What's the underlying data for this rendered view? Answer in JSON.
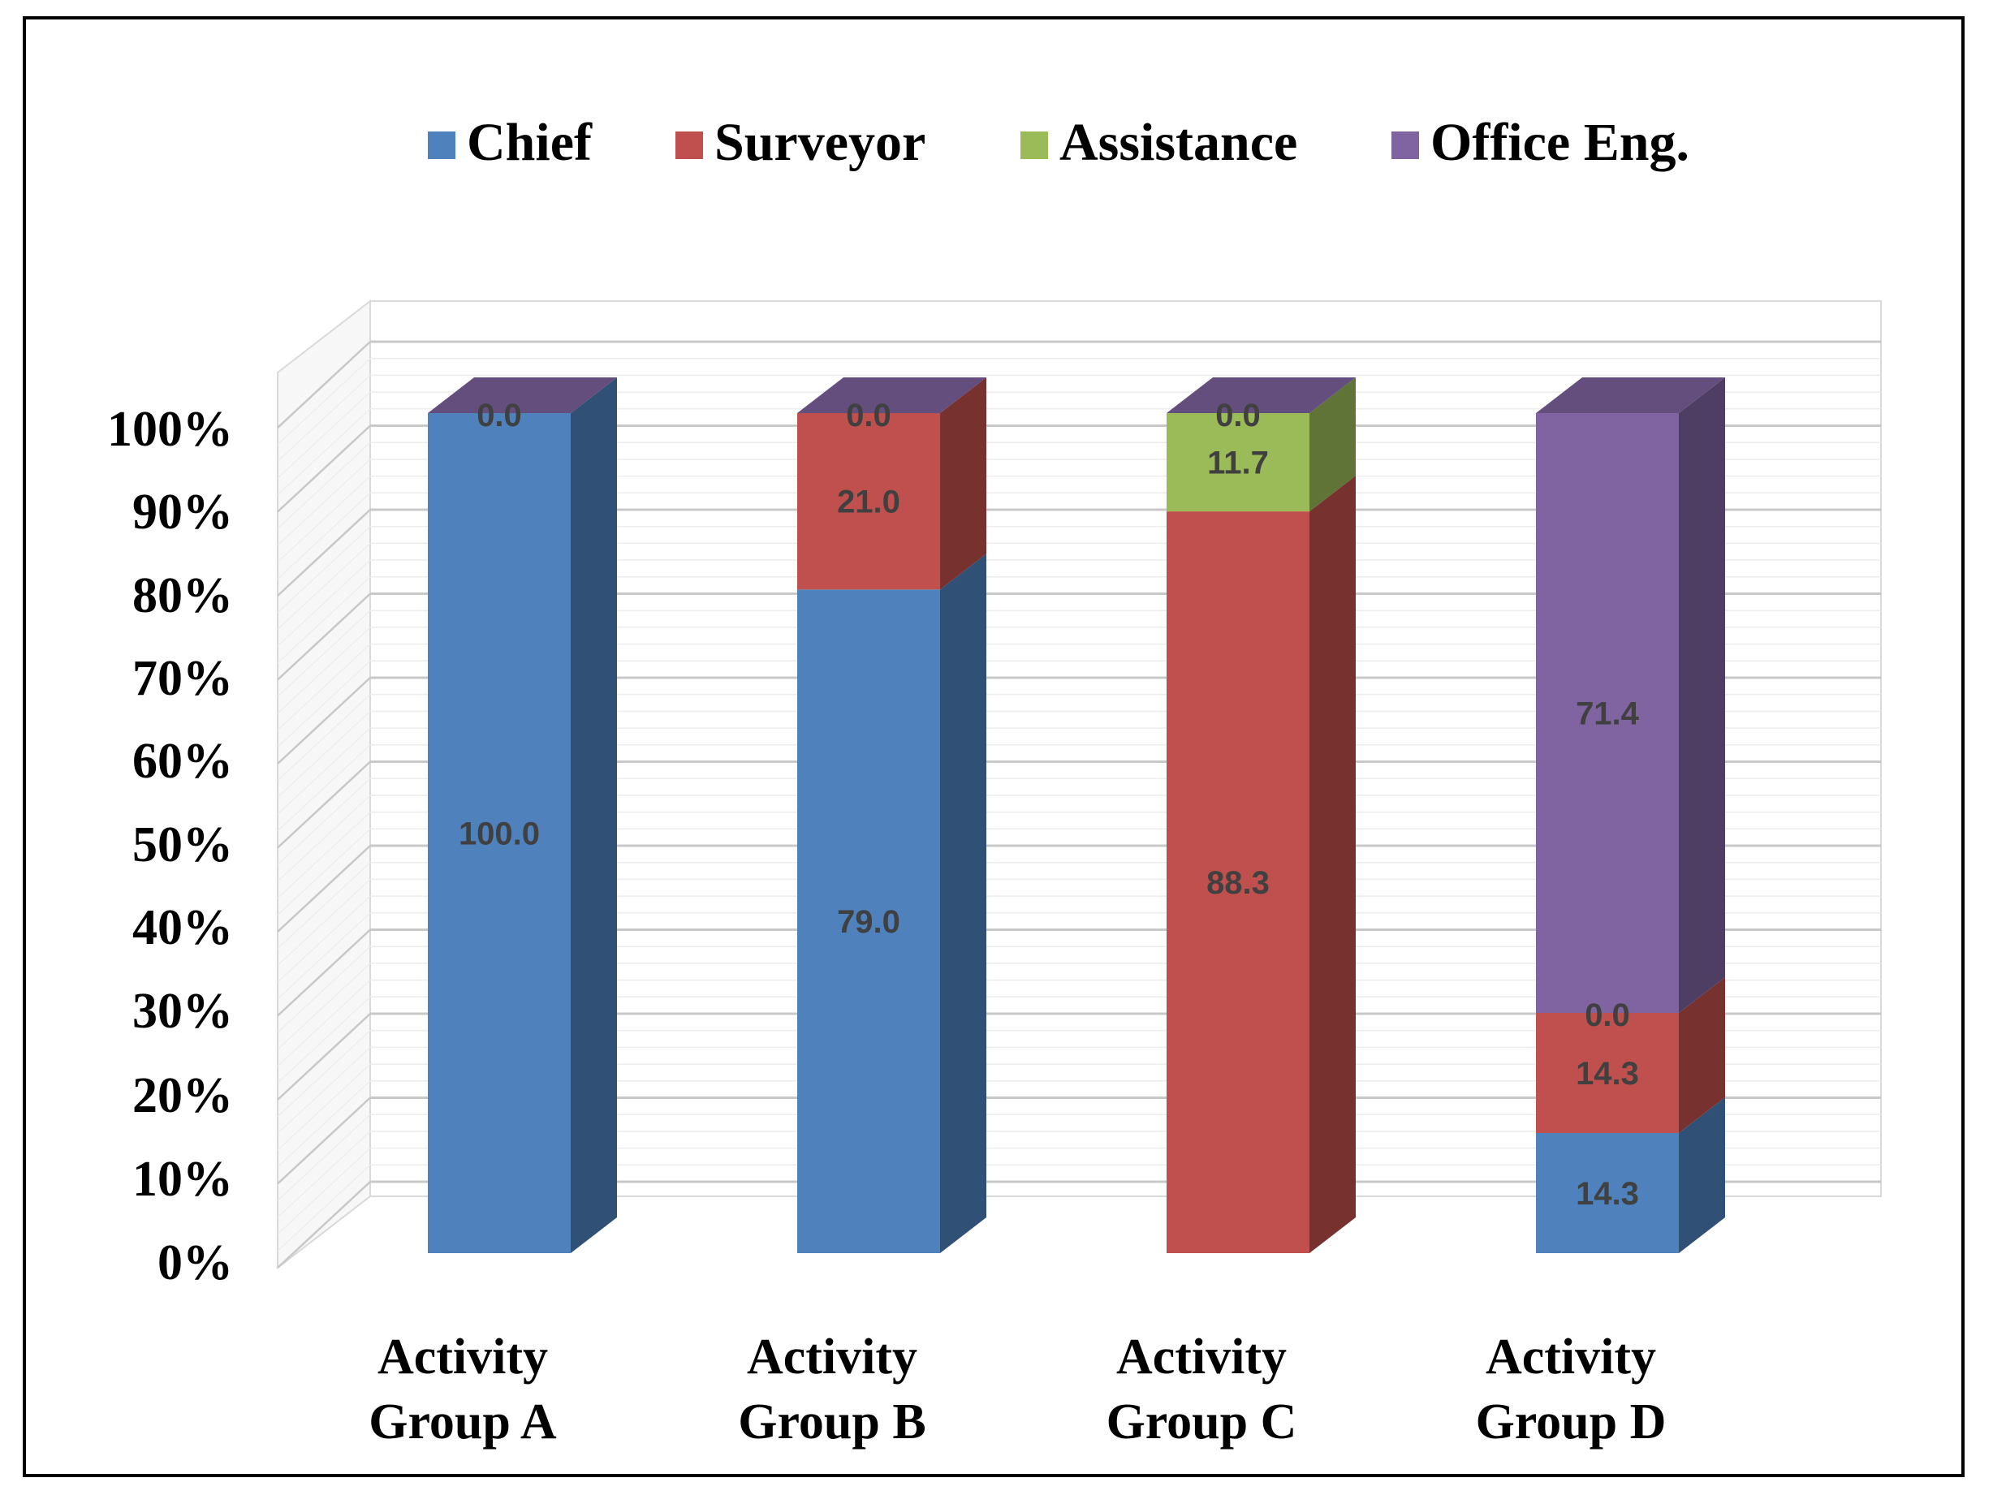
{
  "chart_data": {
    "type": "bar",
    "stacked": true,
    "three_d": true,
    "categories": [
      [
        "Activity",
        "Group A"
      ],
      [
        "Activity",
        "Group B"
      ],
      [
        "Activity",
        "Group C"
      ],
      [
        "Activity",
        "Group D"
      ]
    ],
    "series": [
      {
        "name": "Chief",
        "color": "#4F81BD",
        "values": [
          100.0,
          79.0,
          0.0,
          14.3
        ],
        "labels": [
          "100.0",
          "79.0",
          "0.0",
          "14.3"
        ]
      },
      {
        "name": "Surveyor",
        "color": "#C0504D",
        "values": [
          0.0,
          21.0,
          88.3,
          14.3
        ],
        "labels": [
          "0.0",
          "21.0",
          "88.3",
          "14.3"
        ]
      },
      {
        "name": "Assistance",
        "color": "#9BBB59",
        "values": [
          0.0,
          0.0,
          11.7,
          0.0
        ],
        "labels": [
          "0.0",
          "0.0",
          "11.7",
          "0.0"
        ]
      },
      {
        "name": "Office Eng.",
        "color": "#8064A2",
        "values": [
          0.0,
          0.0,
          0.0,
          71.4
        ],
        "labels": [
          "0.0",
          "0.0",
          "0.0",
          "71.4"
        ]
      }
    ],
    "visible_labels": [
      [
        [
          0,
          0
        ],
        [
          3,
          0
        ]
      ],
      [
        [
          0,
          1
        ],
        [
          1,
          1
        ],
        [
          3,
          1
        ]
      ],
      [
        [
          1,
          2
        ],
        [
          2,
          2
        ],
        [
          3,
          2
        ]
      ],
      [
        [
          0,
          3
        ],
        [
          1,
          3
        ],
        [
          2,
          3
        ],
        [
          3,
          3
        ]
      ]
    ],
    "ylim": [
      0,
      100
    ],
    "yticks": [
      "0%",
      "10%",
      "20%",
      "30%",
      "40%",
      "50%",
      "60%",
      "70%",
      "80%",
      "90%",
      "100%"
    ],
    "legend_position": "top",
    "grid": true,
    "title": "",
    "xlabel": "",
    "ylabel": ""
  }
}
